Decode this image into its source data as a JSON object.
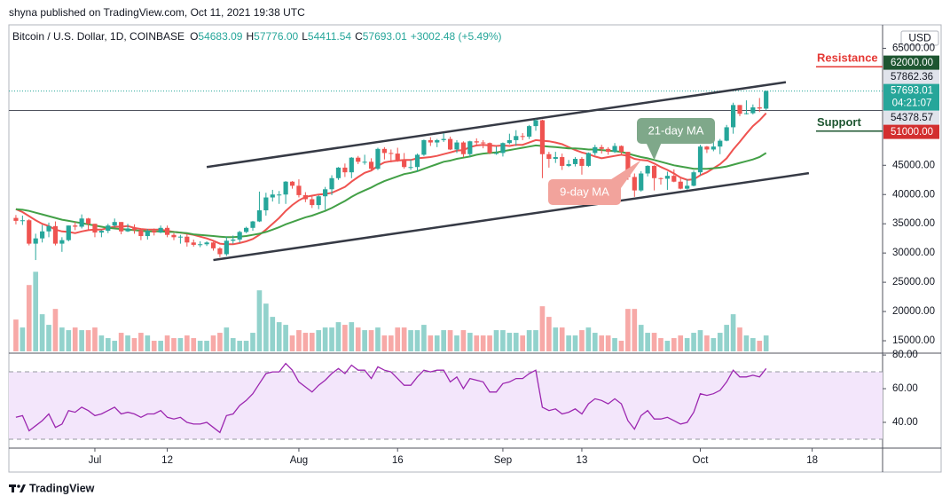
{
  "header": {
    "publisher": "shyna published on TradingView.com, Oct 11, 2021 19:38 UTC",
    "brand": "TradingView"
  },
  "chart_data": {
    "type": "candlestick",
    "symbol": "Bitcoin / U.S. Dollar, 1D, COINBASE",
    "ohlc_letters": [
      "O",
      "H",
      "L",
      "C"
    ],
    "last_value_labels": [
      "54683.09",
      "57776.00",
      "54411.54",
      "57693.01"
    ],
    "change_label": "+3002.48 (+5.49%)",
    "currency": "USD",
    "countdown": "04:21:07",
    "up_color": "#26a69a",
    "down_color": "#ef5350",
    "open": [
      36000,
      35500,
      35600,
      31600,
      32500,
      33700,
      34600,
      31600,
      32200,
      34700,
      34500,
      35900,
      35000,
      33500,
      33800,
      34700,
      35300,
      33700,
      34200,
      33900,
      32900,
      33800,
      33500,
      34300,
      33100,
      32700,
      32800,
      31800,
      31400,
      31500,
      31800,
      30800,
      29800,
      32100,
      32300,
      33600,
      34300,
      35400,
      37300,
      39500,
      40000,
      40000,
      42200,
      41500,
      39900,
      39200,
      38200,
      39700,
      40900,
      42800,
      44600,
      43800,
      46300,
      45600,
      45600,
      44400,
      47800,
      47100,
      47000,
      45900,
      44700,
      44700,
      46800,
      49300,
      48900,
      49300,
      49500,
      47700,
      48900,
      46900,
      49100,
      48900,
      48800,
      47100,
      47100,
      48800,
      49300,
      50000,
      49900,
      51700,
      52700,
      46900,
      46100,
      46400,
      44900,
      45200,
      46100,
      44900,
      47100,
      48100,
      47800,
      47300,
      48300,
      47300,
      43000,
      40700,
      43600,
      44900,
      42800,
      42700,
      43200,
      42200,
      41000,
      41500,
      43800,
      48200,
      47700,
      48200,
      49200,
      51500,
      55300,
      53800,
      53900,
      54900,
      54683.09
    ],
    "high": [
      36500,
      36400,
      35800,
      33300,
      34800,
      35200,
      35400,
      32700,
      34700,
      35300,
      36600,
      36000,
      35000,
      33900,
      35000,
      35900,
      35300,
      35000,
      34900,
      34000,
      34100,
      34200,
      34700,
      34700,
      33400,
      33100,
      33200,
      32300,
      32000,
      32000,
      31900,
      31000,
      32800,
      33000,
      33800,
      34500,
      35500,
      40500,
      40300,
      40800,
      40600,
      42300,
      42300,
      42600,
      40400,
      39700,
      39900,
      41300,
      43300,
      44700,
      45300,
      46400,
      46600,
      46800,
      46200,
      48000,
      48100,
      47700,
      48000,
      47100,
      46000,
      47000,
      49400,
      49800,
      49500,
      50500,
      49900,
      49300,
      49100,
      49200,
      49600,
      49300,
      48900,
      48200,
      48900,
      50400,
      51000,
      50500,
      51900,
      52900,
      52800,
      47300,
      47300,
      47000,
      45900,
      46400,
      46400,
      47200,
      48500,
      48500,
      48100,
      48800,
      48400,
      47300,
      43600,
      44000,
      45000,
      45000,
      42900,
      43900,
      44300,
      42800,
      42600,
      44100,
      48500,
      48300,
      49300,
      49500,
      51900,
      55700,
      55300,
      56100,
      55400,
      56500,
      57776
    ],
    "low": [
      34900,
      34800,
      31300,
      28800,
      31800,
      32700,
      31300,
      30200,
      32000,
      33900,
      34200,
      34000,
      32700,
      32700,
      33400,
      34400,
      33200,
      33600,
      33300,
      32200,
      32300,
      33000,
      33400,
      32700,
      32200,
      31600,
      31100,
      31100,
      31000,
      31200,
      30400,
      29300,
      29500,
      31600,
      31800,
      33400,
      33800,
      35300,
      36400,
      38800,
      38400,
      38400,
      41000,
      39500,
      38700,
      37700,
      37500,
      37400,
      39900,
      42500,
      43000,
      42800,
      45200,
      45100,
      44000,
      44200,
      46000,
      45500,
      45600,
      44400,
      44200,
      43900,
      46600,
      48300,
      48100,
      49000,
      47600,
      47100,
      46400,
      46400,
      48300,
      47900,
      46900,
      46800,
      46500,
      48600,
      48300,
      49300,
      49500,
      50900,
      42800,
      44600,
      45400,
      44200,
      44700,
      44800,
      43400,
      44700,
      46700,
      47000,
      46800,
      47100,
      46800,
      42500,
      39600,
      40500,
      43100,
      40700,
      41700,
      40800,
      42100,
      40900,
      40800,
      41400,
      43300,
      47100,
      47400,
      46900,
      49100,
      50400,
      53400,
      53700,
      53700,
      54100,
      54411.54
    ],
    "close": [
      35500,
      35600,
      31600,
      32500,
      33700,
      34600,
      31600,
      32200,
      34700,
      34500,
      35900,
      35000,
      33500,
      33800,
      34700,
      35300,
      33700,
      34200,
      33900,
      32900,
      33800,
      33500,
      34300,
      33100,
      32700,
      32800,
      31800,
      31400,
      31500,
      31800,
      30800,
      29800,
      32100,
      32300,
      33600,
      34300,
      35400,
      37300,
      39500,
      40000,
      40000,
      42200,
      41500,
      39900,
      39200,
      38200,
      39700,
      40900,
      42800,
      44600,
      43800,
      46300,
      45600,
      45600,
      44400,
      47800,
      47100,
      47000,
      45900,
      44700,
      44700,
      46800,
      49300,
      48900,
      49300,
      49500,
      47700,
      48900,
      46900,
      49100,
      48900,
      48800,
      47100,
      47100,
      48800,
      49300,
      50000,
      49900,
      51700,
      52700,
      46900,
      46100,
      46400,
      44900,
      45200,
      46100,
      44900,
      47100,
      48100,
      47800,
      47300,
      48300,
      47300,
      43000,
      40700,
      43600,
      44900,
      42800,
      42700,
      43200,
      42200,
      41000,
      41500,
      43800,
      48200,
      47700,
      48200,
      49200,
      51500,
      55300,
      53800,
      53900,
      54900,
      54700,
      57693.01
    ],
    "volume": [
      12,
      9,
      25,
      30,
      14,
      10,
      16,
      9,
      8,
      9,
      8,
      8,
      9,
      6,
      5,
      4,
      7,
      6,
      5,
      7,
      6,
      4,
      4,
      6,
      5,
      5,
      6,
      5,
      4,
      4,
      6,
      7,
      9,
      5,
      4,
      4,
      7,
      23,
      18,
      13,
      11,
      10,
      6,
      8,
      7,
      7,
      8,
      9,
      9,
      11,
      10,
      11,
      9,
      8,
      8,
      9,
      6,
      6,
      9,
      9,
      8,
      8,
      10,
      6,
      6,
      8,
      8,
      6,
      8,
      7,
      6,
      6,
      6,
      8,
      8,
      7,
      7,
      6,
      8,
      8,
      17,
      13,
      9,
      9,
      6,
      6,
      8,
      9,
      7,
      6,
      6,
      5,
      4,
      16,
      16,
      10,
      7,
      7,
      5,
      4,
      5,
      6,
      5,
      7,
      8,
      6,
      5,
      7,
      10,
      14,
      9,
      6,
      5,
      4,
      6
    ],
    "volume_lim": [
      0,
      114
    ],
    "xlim": [
      -1.07,
      131.7
    ],
    "xticks": [
      {
        "value": 12,
        "label": "Jul"
      },
      {
        "value": 23,
        "label": "12"
      },
      {
        "value": 43,
        "label": "Aug"
      },
      {
        "value": 58,
        "label": "16"
      },
      {
        "value": 74,
        "label": "Sep"
      },
      {
        "value": 86,
        "label": "13"
      },
      {
        "value": 104,
        "label": "Oct"
      },
      {
        "value": 121,
        "label": "18"
      }
    ],
    "ylim": [
      12880,
      69010
    ],
    "yticks": [
      {
        "value": 65000,
        "label": "65000.00"
      },
      {
        "value": 45000,
        "label": "45000.00"
      },
      {
        "value": 40000,
        "label": "40000.00"
      },
      {
        "value": 35000,
        "label": "35000.00"
      },
      {
        "value": 30000,
        "label": "30000.00"
      },
      {
        "value": 25000,
        "label": "25000.00"
      },
      {
        "value": 20000,
        "label": "20000.00"
      },
      {
        "value": 15000,
        "label": "15000.00"
      }
    ],
    "price_tags": [
      {
        "value": 62000,
        "label": "62000.00",
        "color": "#1e5631"
      },
      {
        "value": 57862.36,
        "label": "57862.36",
        "color": "#e0e3eb"
      },
      {
        "value": 54378.57,
        "label": "54378.57",
        "color": "#e0e3eb"
      },
      {
        "value": 51000,
        "label": "51000.00",
        "color": "#d32f2f"
      }
    ],
    "annotations": [
      {
        "text": "Resistance",
        "value": 62000,
        "color": "#e53935"
      },
      {
        "text": "Support",
        "value": 51000,
        "color": "#1e5631"
      }
    ],
    "ma": [
      {
        "name": "9-day MA",
        "color": "#ef5350",
        "values": [
          37500,
          37000,
          36300,
          35600,
          35000,
          34600,
          34000,
          33700,
          33600,
          33400,
          33700,
          33900,
          34000,
          34000,
          34300,
          34500,
          34500,
          34600,
          34300,
          34100,
          34000,
          34000,
          34000,
          33800,
          33600,
          33500,
          33300,
          33100,
          32800,
          32500,
          32100,
          31600,
          31500,
          31500,
          31700,
          32000,
          32400,
          33100,
          34000,
          35000,
          36000,
          37200,
          38200,
          39000,
          39600,
          39800,
          40000,
          40100,
          40300,
          40800,
          41300,
          42200,
          43000,
          43700,
          44100,
          44900,
          45500,
          45700,
          45800,
          45900,
          45900,
          46200,
          46300,
          46400,
          46600,
          46900,
          47200,
          47500,
          47600,
          48100,
          48400,
          48500,
          48400,
          48300,
          48400,
          48300,
          48500,
          48500,
          48900,
          49300,
          49200,
          49100,
          48900,
          48600,
          48100,
          47600,
          47200,
          46900,
          46500,
          46200,
          46400,
          46600,
          46800,
          46600,
          46100,
          45900,
          45800,
          45300,
          44700,
          44200,
          43600,
          42900,
          42500,
          42600,
          43300,
          43800,
          44500,
          45200,
          46200,
          47700,
          49000,
          50400,
          51700,
          52700,
          53900
        ]
      },
      {
        "name": "21-day MA",
        "color": "#43a047",
        "values": [
          37500,
          37400,
          37200,
          36900,
          36600,
          36300,
          36000,
          35700,
          35500,
          35300,
          35100,
          34900,
          34700,
          34500,
          34300,
          34200,
          34100,
          34000,
          33900,
          33800,
          33700,
          33700,
          33700,
          33600,
          33600,
          33500,
          33400,
          33200,
          33100,
          33000,
          32900,
          32800,
          32700,
          32700,
          32800,
          32900,
          33100,
          33300,
          33600,
          34000,
          34400,
          34900,
          35300,
          35700,
          36100,
          36400,
          36800,
          37200,
          37700,
          38300,
          38900,
          39600,
          40200,
          40700,
          41200,
          41800,
          42300,
          42700,
          43100,
          43500,
          43700,
          44000,
          44400,
          44800,
          45200,
          45600,
          45800,
          46100,
          46300,
          46500,
          46800,
          47000,
          47100,
          47200,
          47400,
          47600,
          47800,
          48000,
          48200,
          48400,
          48300,
          48200,
          48100,
          48000,
          47900,
          47900,
          47800,
          47700,
          47700,
          47600,
          47500,
          47400,
          47300,
          47000,
          46700,
          46400,
          46200,
          45900,
          45600,
          45300,
          45000,
          44800,
          44600,
          44400,
          44400,
          44400,
          44500,
          44600,
          44800,
          45100,
          45400,
          45700,
          46000,
          46400,
          47100
        ]
      }
    ],
    "trendlines": [
      {
        "x": [
          29,
          117
        ],
        "y": [
          44700,
          59200
        ]
      },
      {
        "x": [
          30,
          120.5
        ],
        "y": [
          28800,
          43650
        ]
      }
    ],
    "rsi": {
      "color": "#9c27b0",
      "ylim": [
        24.7,
        81.1
      ],
      "band": [
        30,
        70
      ],
      "yticks": [
        {
          "value": 80,
          "label": "80.00"
        },
        {
          "value": 60,
          "label": "60.00"
        },
        {
          "value": 40,
          "label": "40.00"
        }
      ],
      "values": [
        43,
        44,
        35,
        38,
        41,
        45,
        37,
        39,
        47,
        46,
        49,
        47,
        44,
        45,
        47,
        49,
        45,
        46,
        45,
        43,
        45,
        45,
        47,
        43,
        42,
        43,
        40,
        39,
        39,
        40,
        37,
        34,
        44,
        45,
        50,
        53,
        57,
        63,
        69,
        70,
        70,
        75,
        71,
        64,
        61,
        58,
        62,
        65,
        69,
        72,
        69,
        74,
        71,
        71,
        66,
        73,
        71,
        70,
        66,
        62,
        62,
        67,
        71,
        70,
        71,
        71,
        64,
        67,
        60,
        66,
        65,
        64,
        58,
        58,
        63,
        64,
        66,
        66,
        69,
        71,
        49,
        47,
        48,
        45,
        46,
        48,
        45,
        51,
        54,
        53,
        51,
        54,
        51,
        41,
        36,
        44,
        47,
        42,
        42,
        43,
        41,
        39,
        40,
        46,
        57,
        56,
        57,
        59,
        64,
        71,
        67,
        67,
        68,
        67,
        72
      ]
    }
  }
}
